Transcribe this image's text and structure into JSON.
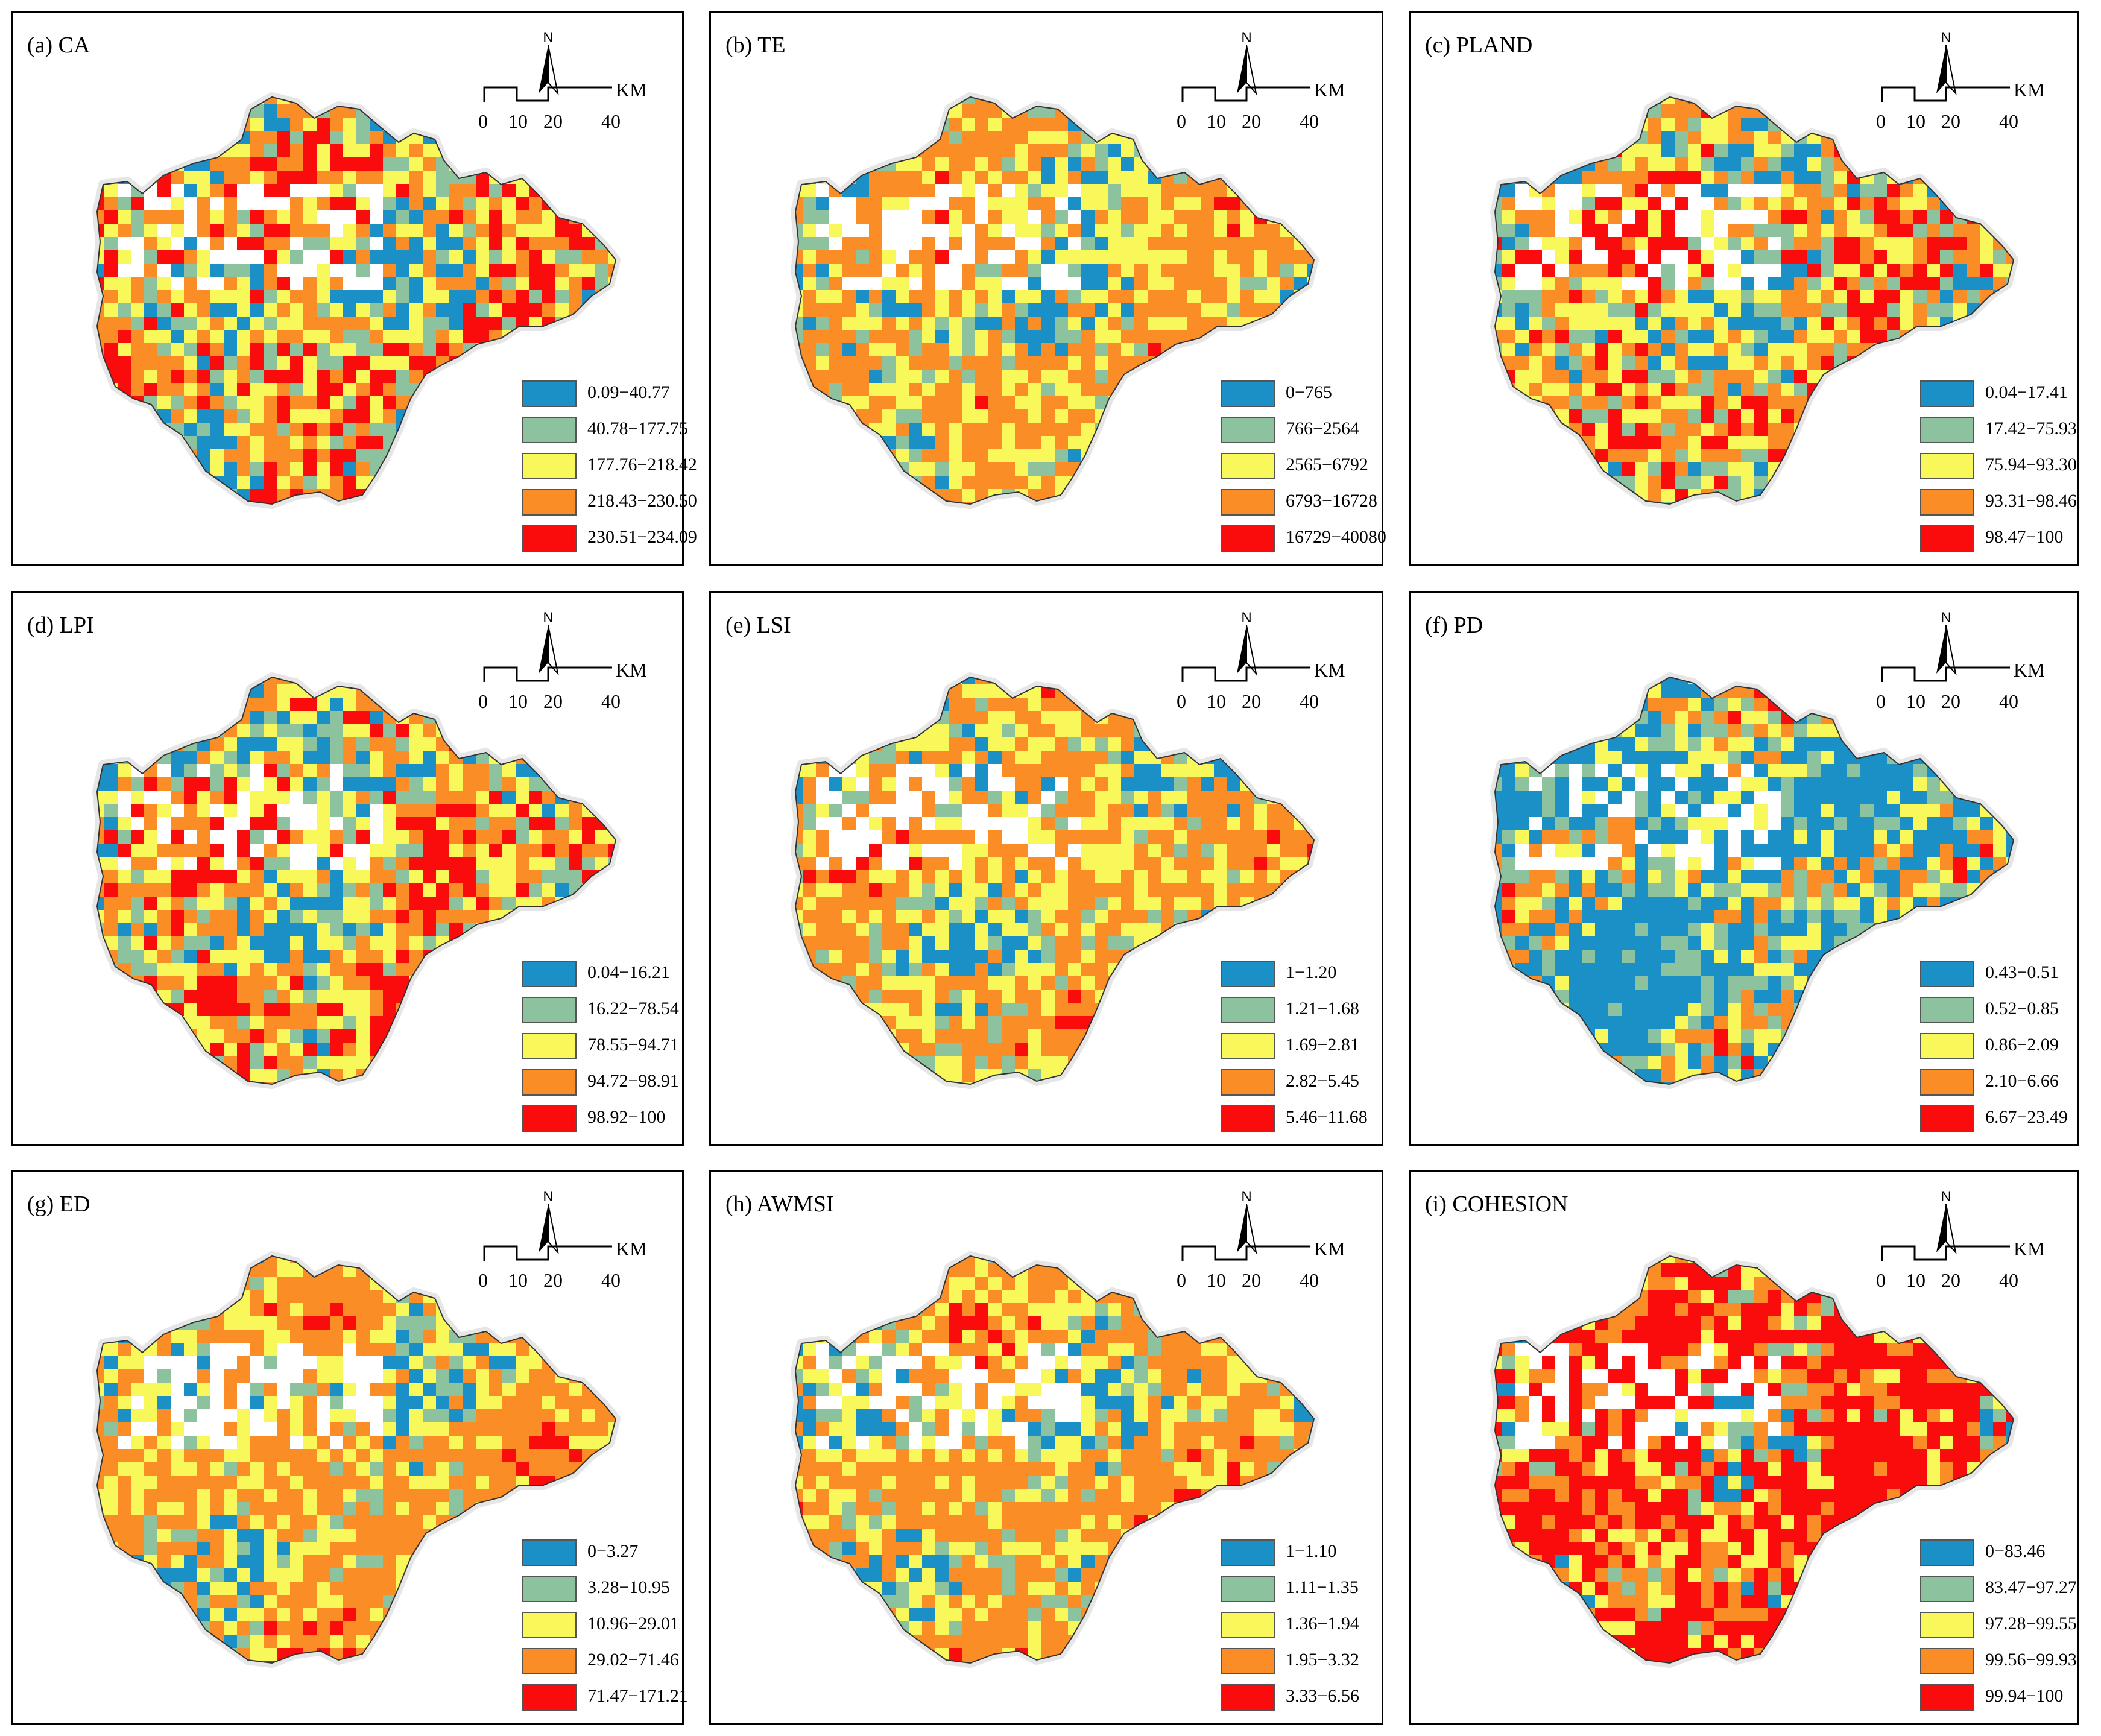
{
  "figure": {
    "colors": {
      "class1": "#1a90c7",
      "class2": "#8cc39e",
      "class3": "#f8f85a",
      "class4": "#fb8d26",
      "class5": "#fa0c0c"
    },
    "north_letter": "N",
    "scale": {
      "unit": "KM",
      "ticks": [
        "0",
        "10",
        "20",
        "40"
      ]
    }
  },
  "panels": [
    {
      "label": "(a) CA",
      "dominant": "mixed-red",
      "legend": [
        "0.09−40.77",
        "40.78−177.75",
        "177.76−218.42",
        "218.43−230.50",
        "230.51−234.09"
      ]
    },
    {
      "label": "(b) TE",
      "dominant": "mixed-orange",
      "legend": [
        "0−765",
        "766−2564",
        "2565−6792",
        "6793−16728",
        "16729−40080"
      ]
    },
    {
      "label": "(c) PLAND",
      "dominant": "mixed-red",
      "legend": [
        "0.04−17.41",
        "17.42−75.93",
        "75.94−93.30",
        "93.31−98.46",
        "98.47−100"
      ]
    },
    {
      "label": "(d) LPI",
      "dominant": "mixed-red",
      "legend": [
        "0.04−16.21",
        "16.22−78.54",
        "78.55−94.71",
        "94.72−98.91",
        "98.92−100"
      ]
    },
    {
      "label": "(e) LSI",
      "dominant": "mixed-orange",
      "legend": [
        "1−1.20",
        "1.21−1.68",
        "1.69−2.81",
        "2.82−5.45",
        "5.46−11.68"
      ]
    },
    {
      "label": "(f) PD",
      "dominant": "blue",
      "legend": [
        "0.43−0.51",
        "0.52−0.85",
        "0.86−2.09",
        "2.10−6.66",
        "6.67−23.49"
      ]
    },
    {
      "label": "(g) ED",
      "dominant": "mixed-orange",
      "legend": [
        "0−3.27",
        "3.28−10.95",
        "10.96−29.01",
        "29.02−71.46",
        "71.47−171.21"
      ]
    },
    {
      "label": "(h) AWMSI",
      "dominant": "mixed-orange",
      "legend": [
        "1−1.10",
        "1.11−1.35",
        "1.36−1.94",
        "1.95−3.32",
        "3.33−6.56"
      ]
    },
    {
      "label": "(i) COHESION",
      "dominant": "red",
      "legend": [
        "0−83.46",
        "83.47−97.27",
        "97.28−99.55",
        "99.56−99.93",
        "99.94−100"
      ]
    }
  ]
}
